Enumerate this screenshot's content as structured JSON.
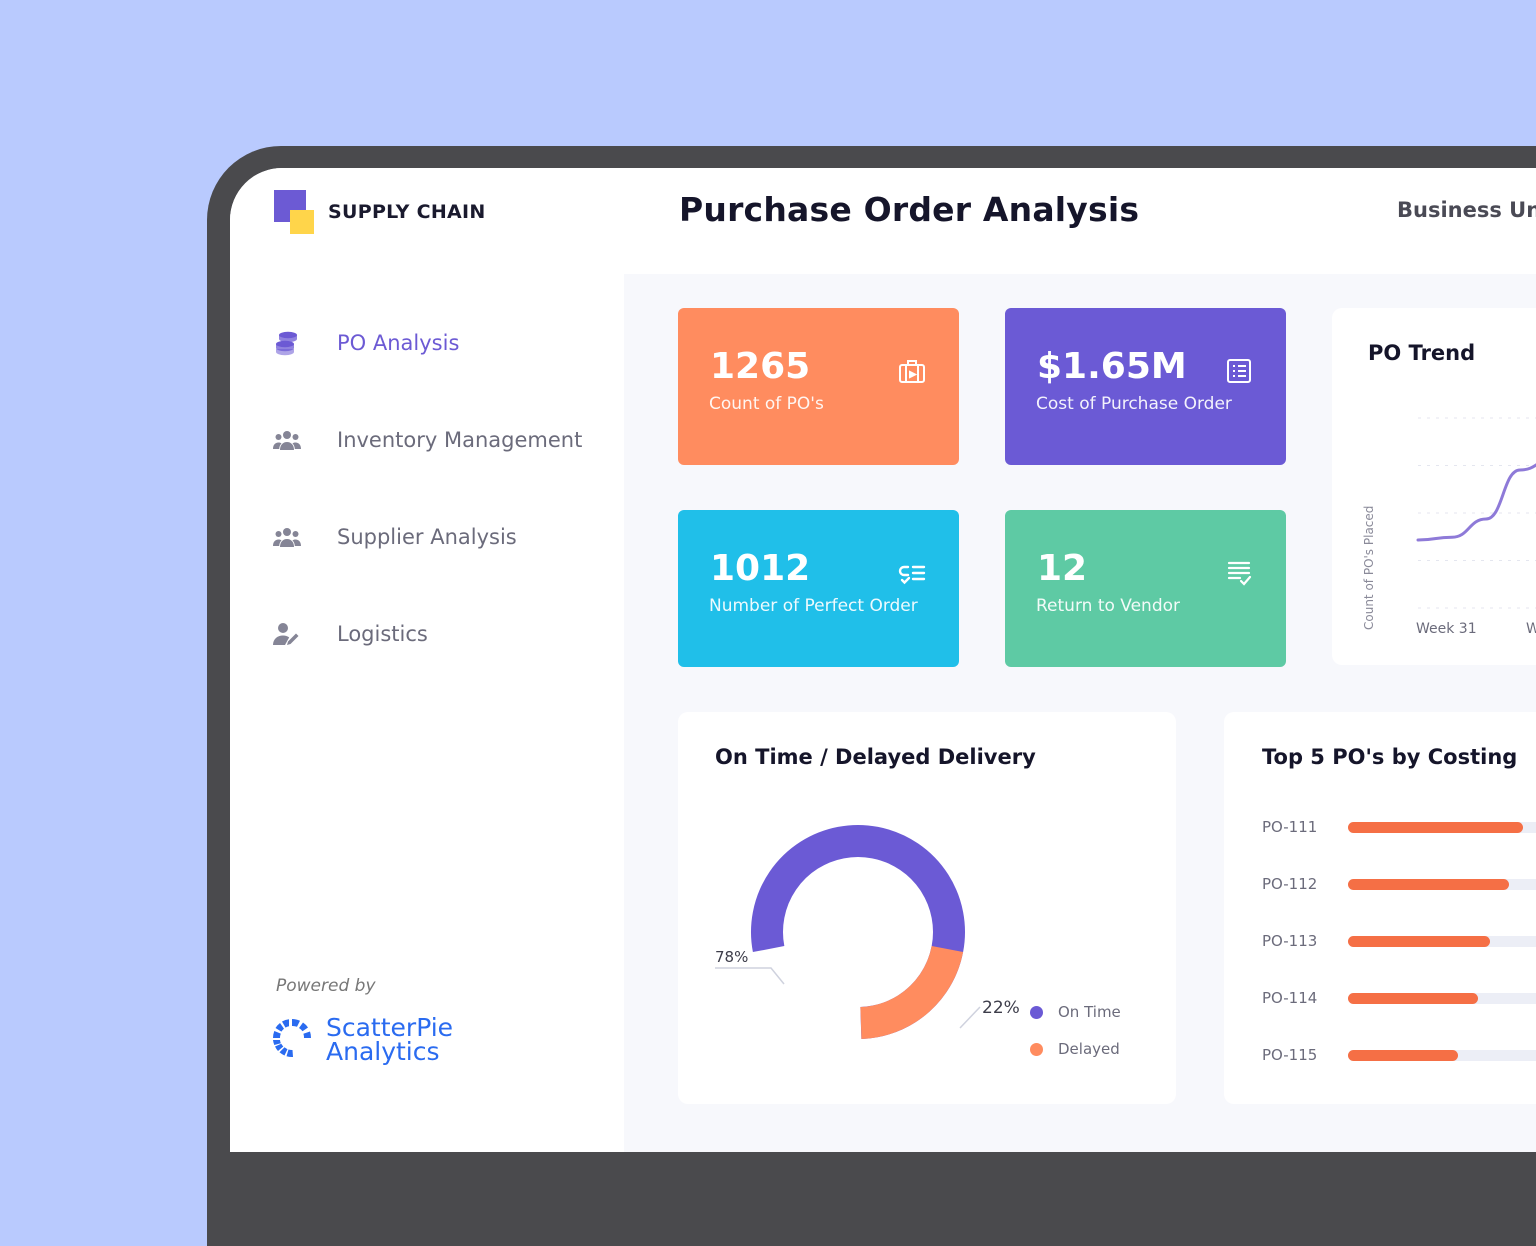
{
  "app": {
    "brand_name": "SUPPLY CHAIN"
  },
  "sidebar": {
    "items": [
      {
        "label": "PO Analysis",
        "icon": "coins-stack-icon",
        "active": true
      },
      {
        "label": "Inventory Management",
        "icon": "users-group-icon",
        "active": false
      },
      {
        "label": "Supplier Analysis",
        "icon": "users-group-icon",
        "active": false
      },
      {
        "label": "Logistics",
        "icon": "user-edit-icon",
        "active": false
      }
    ],
    "powered_by": "Powered by",
    "vendor": {
      "line1": "ScatterPie",
      "line2": "Analytics"
    }
  },
  "header": {
    "title": "Purchase Order Analysis",
    "filter_label": "Business Unit"
  },
  "kpis": [
    {
      "value": "1265",
      "label": "Count of PO's",
      "color": "#ff8c5f",
      "icon": "briefcase-icon"
    },
    {
      "value": "$1.65M",
      "label": "Cost of Purchase Order",
      "color": "#6b5ad5",
      "icon": "list-icon"
    },
    {
      "value": "1012",
      "label": "Number of Perfect Order",
      "color": "#20bfe9",
      "icon": "checklist-icon"
    },
    {
      "value": "12",
      "label": "Return to Vendor",
      "color": "#5ecaa4",
      "icon": "document-check-icon"
    }
  ],
  "po_trend": {
    "title": "PO Trend",
    "ylabel": "Count of PO's Placed",
    "x_tick": "Week 31",
    "x_tick_cut": "W"
  },
  "delivery": {
    "title": "On Time / Delayed Delivery",
    "legend": [
      {
        "label": "On Time",
        "color": "#6b5ad5"
      },
      {
        "label": "Delayed",
        "color": "#ff8c5f"
      }
    ]
  },
  "top_pos": {
    "title": "Top 5 PO's by Costing"
  },
  "chart_data": [
    {
      "type": "pie",
      "title": "On Time / Delayed Delivery",
      "categories": [
        "On Time",
        "Delayed"
      ],
      "values": [
        78,
        22
      ],
      "labels": [
        "78%",
        "22%"
      ],
      "colors": [
        "#6b5ad5",
        "#ff8c5f"
      ]
    },
    {
      "type": "bar",
      "orientation": "horizontal",
      "title": "Top 5 PO's by Costing",
      "categories": [
        "PO-111",
        "PO-112",
        "PO-113",
        "PO-114",
        "PO-115"
      ],
      "values": [
        1.0,
        0.92,
        0.81,
        0.74,
        0.63
      ],
      "value_unit": "fraction of PO-111"
    },
    {
      "type": "line",
      "title": "PO Trend",
      "ylabel": "Count of PO's Placed",
      "x": [
        "",
        "",
        "",
        "",
        "",
        "",
        ""
      ],
      "values": [
        20,
        22,
        35,
        70,
        78,
        68,
        55
      ],
      "value_unit": "relative (0-100)",
      "color": "#8e7ad8"
    }
  ]
}
